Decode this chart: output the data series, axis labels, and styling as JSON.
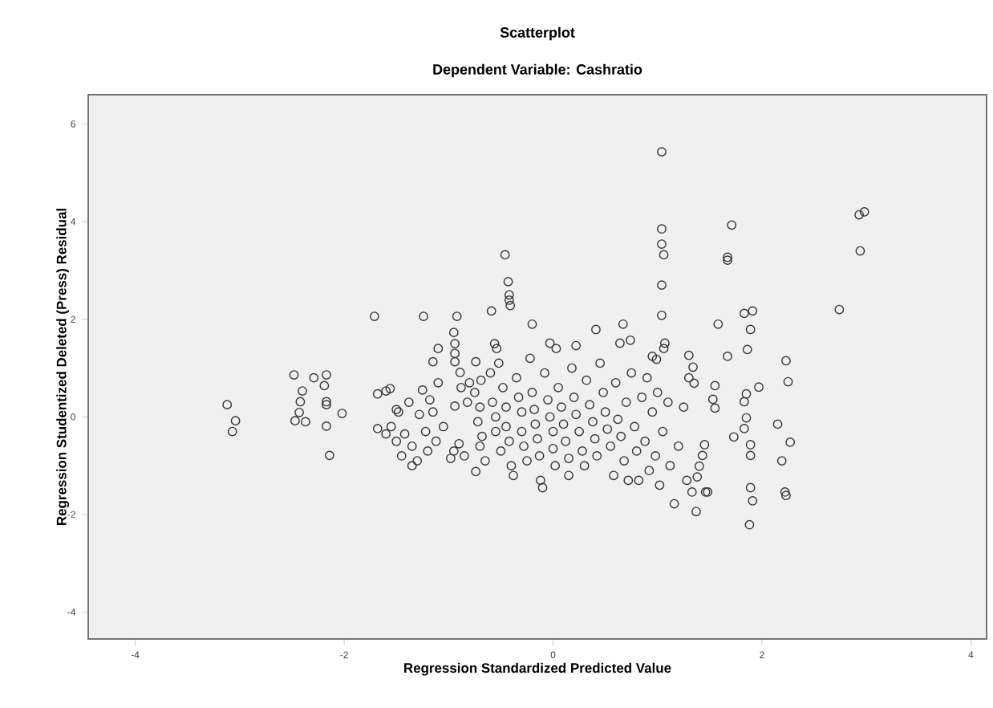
{
  "chart_data": {
    "type": "scatter",
    "title": "Scatterplot",
    "subtitle": "Dependent Variable: Cashratio",
    "xlabel": "Regression Standardized Predicted Value",
    "ylabel": "Regression Studentized Deleted (Press) Residual",
    "xlim": [
      -4.45,
      4.15
    ],
    "ylim": [
      -4.55,
      6.6
    ],
    "xticks": [
      -4,
      -2,
      0,
      2,
      4
    ],
    "yticks": [
      -4,
      -2,
      0,
      2,
      4,
      6
    ],
    "marker": "circle",
    "color": "#333333",
    "x": [
      -3.12,
      -3.04,
      -3.07,
      -2.48,
      -2.4,
      -2.42,
      -2.43,
      -2.47,
      -2.37,
      -2.29,
      -2.17,
      -2.19,
      -2.17,
      -2.17,
      -2.17,
      -2.02,
      -2.14,
      -1.71,
      -1.24,
      -0.92,
      -0.95,
      -0.94,
      -0.94,
      -0.94,
      -1.1,
      -1.15,
      -1.6,
      -1.68,
      -1.56,
      -1.68,
      -0.94,
      -0.89,
      -0.74,
      -0.74,
      -0.69,
      -0.59,
      -0.46,
      -0.43,
      -0.42,
      -0.42,
      -0.41,
      -0.2,
      -0.56,
      -0.54,
      1.04,
      1.04,
      1.04,
      1.06,
      1.04,
      1.04,
      1.07,
      1.06,
      0.95,
      0.99,
      1.71,
      1.67,
      1.67,
      2.98,
      2.93,
      2.94,
      2.74,
      1.91,
      1.83,
      1.89,
      1.58,
      1.86,
      1.67,
      2.23,
      2.25,
      1.97,
      1.85,
      1.83,
      1.85,
      1.83,
      1.73,
      1.89,
      1.89,
      2.15,
      2.27,
      2.19,
      2.22,
      2.23,
      1.89,
      1.91,
      1.88,
      1.37,
      1.16,
      1.46,
      1.48,
      1.33,
      1.45,
      1.43,
      1.4,
      1.38,
      1.55,
      1.53,
      1.55,
      1.35,
      1.34,
      1.3,
      0.41,
      0.67,
      0.64,
      0.74,
      0.22,
      -0.03,
      0.03,
      -0.8,
      -0.75,
      -0.7,
      -0.72,
      -0.68,
      -0.7,
      -0.65,
      -0.6,
      -0.58,
      -0.55,
      -0.55,
      -0.5,
      -0.52,
      -0.48,
      -0.45,
      -0.45,
      -0.42,
      -0.4,
      -0.38,
      -0.35,
      -0.33,
      -0.3,
      -0.3,
      -0.28,
      -0.25,
      -0.22,
      -0.2,
      -0.18,
      -0.17,
      -0.15,
      -0.13,
      -0.12,
      -0.1,
      -0.08,
      -0.05,
      -0.03,
      0.0,
      0.0,
      0.02,
      0.05,
      0.08,
      0.1,
      0.12,
      0.15,
      0.15,
      0.18,
      0.2,
      0.22,
      0.25,
      0.28,
      0.3,
      0.32,
      0.35,
      0.38,
      0.4,
      0.42,
      0.45,
      0.48,
      0.5,
      0.52,
      0.55,
      0.58,
      0.6,
      0.62,
      0.65,
      0.68,
      0.7,
      0.72,
      0.75,
      0.78,
      0.8,
      0.82,
      0.85,
      0.88,
      0.9,
      0.92,
      0.95,
      0.98,
      1.0,
      1.02,
      1.05,
      1.1,
      1.12,
      1.2,
      1.25,
      1.28,
      1.3,
      -1.55,
      -1.5,
      -1.48,
      -1.45,
      -1.42,
      -1.38,
      -1.35,
      -1.3,
      -1.28,
      -1.25,
      -1.22,
      -1.2,
      -1.18,
      -1.15,
      -1.12,
      -1.1,
      -1.05,
      -1.5,
      -1.6,
      -1.35,
      -0.85,
      -0.9,
      -0.82,
      -0.88,
      -0.95,
      -0.98
    ],
    "values": [
      0.25,
      -0.08,
      -0.3,
      0.86,
      0.53,
      0.31,
      0.09,
      -0.08,
      -0.1,
      0.8,
      0.86,
      0.64,
      0.31,
      0.25,
      -0.19,
      0.07,
      -0.79,
      2.06,
      2.06,
      2.06,
      1.73,
      1.5,
      1.3,
      1.13,
      1.4,
      1.13,
      0.53,
      0.47,
      0.58,
      -0.24,
      0.22,
      0.91,
      -1.12,
      1.13,
      0.75,
      2.17,
      3.32,
      2.77,
      2.5,
      2.39,
      2.28,
      1.9,
      1.5,
      1.4,
      5.43,
      3.85,
      3.54,
      3.32,
      2.7,
      2.08,
      1.51,
      1.4,
      1.24,
      1.18,
      3.93,
      3.27,
      3.21,
      4.2,
      4.14,
      3.4,
      2.2,
      2.17,
      2.12,
      1.79,
      1.9,
      1.38,
      1.24,
      1.15,
      0.72,
      0.61,
      0.47,
      0.31,
      -0.02,
      -0.24,
      -0.41,
      -0.57,
      -0.79,
      -0.15,
      -0.52,
      -0.9,
      -1.54,
      -1.61,
      -1.45,
      -1.72,
      -2.21,
      -1.94,
      -1.78,
      -1.54,
      -1.54,
      -1.54,
      -0.57,
      -0.79,
      -1.01,
      -1.23,
      0.64,
      0.36,
      0.18,
      0.69,
      1.02,
      1.26,
      1.79,
      1.9,
      1.51,
      1.57,
      1.46,
      1.51,
      1.4,
      0.7,
      0.5,
      0.2,
      -0.1,
      -0.4,
      -0.6,
      -0.9,
      0.9,
      0.3,
      0.0,
      -0.3,
      -0.7,
      1.1,
      0.6,
      0.2,
      -0.2,
      -0.5,
      -1.0,
      -1.2,
      0.8,
      0.4,
      0.1,
      -0.3,
      -0.6,
      -0.9,
      1.2,
      0.5,
      0.15,
      -0.15,
      -0.45,
      -0.8,
      -1.3,
      -1.45,
      0.9,
      0.35,
      0.0,
      -0.3,
      -0.65,
      -1.0,
      0.6,
      0.2,
      -0.15,
      -0.5,
      -0.85,
      -1.2,
      1.0,
      0.4,
      0.05,
      -0.3,
      -0.7,
      -1.0,
      0.75,
      0.25,
      -0.1,
      -0.45,
      -0.8,
      1.1,
      0.5,
      0.1,
      -0.25,
      -0.6,
      -1.2,
      0.7,
      -0.05,
      -0.4,
      -0.9,
      0.3,
      -1.3,
      0.9,
      -0.2,
      -0.7,
      -1.3,
      0.4,
      -0.5,
      0.8,
      -1.1,
      0.1,
      -0.8,
      0.5,
      -1.4,
      -0.3,
      0.3,
      -1.0,
      -0.6,
      0.2,
      -1.3,
      0.8,
      -0.2,
      -0.5,
      0.1,
      -0.8,
      -0.35,
      0.3,
      -0.6,
      -0.9,
      0.05,
      0.55,
      -0.3,
      -0.7,
      0.35,
      0.1,
      -0.5,
      0.7,
      -0.2,
      0.15,
      -0.35,
      -1.0,
      -0.8,
      -0.55,
      0.3,
      0.6,
      -0.7,
      -0.85
    ]
  }
}
